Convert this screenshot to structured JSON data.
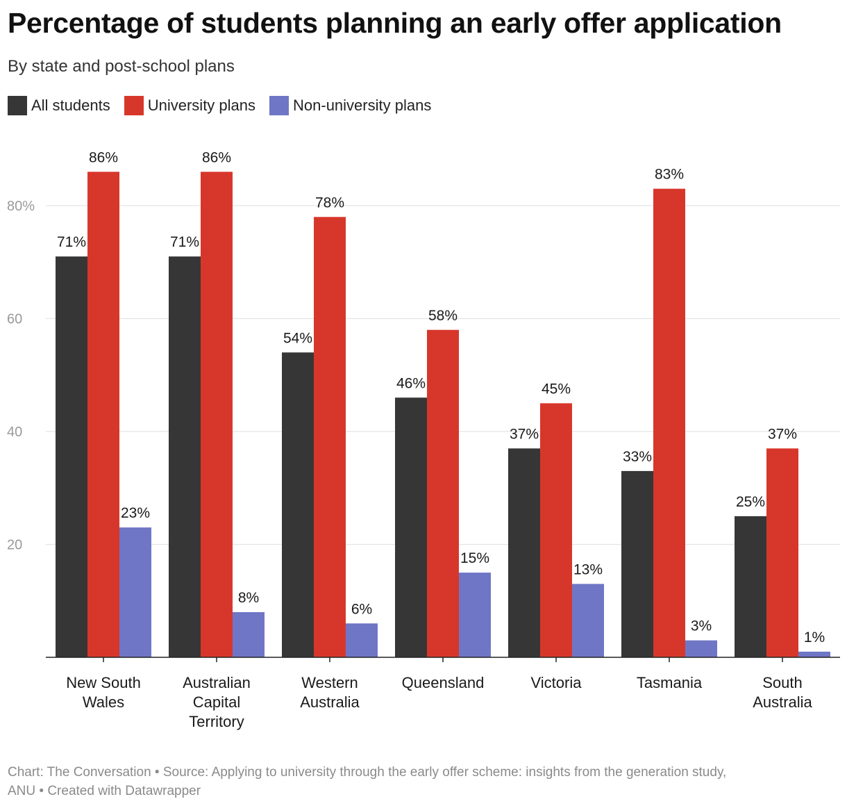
{
  "header": {
    "title": "Percentage of students planning an early offer application",
    "subtitle": "By state and post-school plans"
  },
  "legend": [
    {
      "label": "All students",
      "color": "#363636"
    },
    {
      "label": "University plans",
      "color": "#d7372b"
    },
    {
      "label": "Non-university plans",
      "color": "#6f76c6"
    }
  ],
  "footer": {
    "line1": "Chart: The Conversation • Source: Applying to university through the early offer scheme: insights from the generation study,",
    "line2": "ANU • Created with Datawrapper"
  },
  "chart_data": {
    "type": "bar",
    "title": "Percentage of students planning an early offer application",
    "subtitle": "By state and post-school plans",
    "xlabel": "",
    "ylabel": "",
    "ylim": [
      0,
      90
    ],
    "yticks": [
      20,
      40,
      60,
      80
    ],
    "ytick_labels": [
      "20",
      "40",
      "60",
      "80%"
    ],
    "grid": true,
    "legend_position": "top-left",
    "categories": [
      [
        "New South",
        "Wales"
      ],
      [
        "Australian",
        "Capital",
        "Territory"
      ],
      [
        "Western",
        "Australia"
      ],
      [
        "Queensland"
      ],
      [
        "Victoria"
      ],
      [
        "Tasmania"
      ],
      [
        "South",
        "Australia"
      ]
    ],
    "series": [
      {
        "name": "All students",
        "color": "#363636",
        "values": [
          71,
          71,
          54,
          46,
          37,
          33,
          25
        ]
      },
      {
        "name": "University plans",
        "color": "#d7372b",
        "values": [
          86,
          86,
          78,
          58,
          45,
          83,
          37
        ]
      },
      {
        "name": "Non-university plans",
        "color": "#6f76c6",
        "values": [
          23,
          8,
          6,
          15,
          13,
          3,
          1
        ]
      }
    ],
    "value_suffix": "%"
  }
}
